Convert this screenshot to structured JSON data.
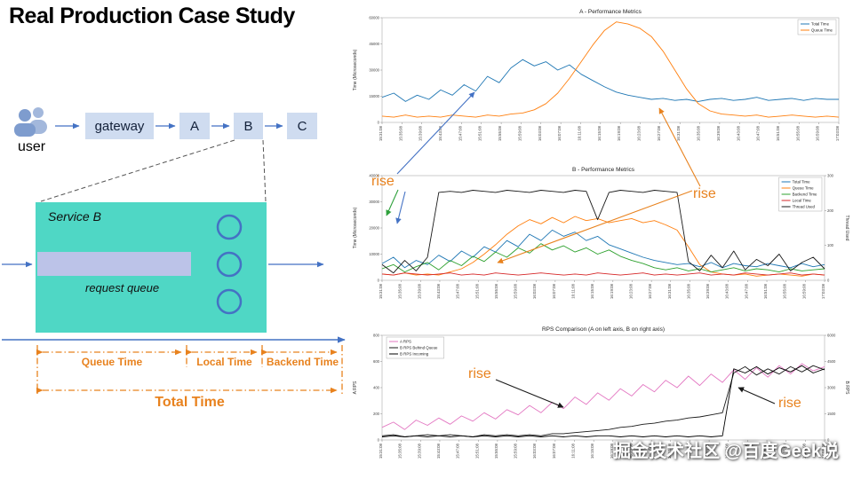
{
  "title": "Real Production Case Study",
  "diagram": {
    "user_label": "user",
    "flow_nodes": [
      "gateway",
      "A",
      "B",
      "C"
    ],
    "service_box": {
      "title": "Service B",
      "queue_label": "request queue"
    },
    "timeline": {
      "segments": [
        "Queue Time",
        "Local Time",
        "Backend Time"
      ],
      "total_label": "Total Time"
    }
  },
  "annotations": {
    "rise": "rise"
  },
  "watermark": "掘金技术社区 @百度Geek说",
  "colors": {
    "accent_blue": "#4472c4",
    "annotation_orange": "#e8821e",
    "annotation_green": "#2fa13c",
    "annotation_black": "#1a1a1a",
    "service_box_fill": "#4fd7c5",
    "queue_bar_fill": "#bcc3e8",
    "flow_box_fill": "#cfdcf0"
  },
  "chart_data": [
    {
      "type": "line",
      "title": "A - Performance Metrics",
      "ylabel": "Time (Microseconds)",
      "ylabel_right": null,
      "legend_position": "top-right",
      "ylim": [
        0,
        100
      ],
      "y_ticks": [
        "0",
        "15000",
        "30000",
        "45000",
        "60000"
      ],
      "y_ticks_right": null,
      "x_ticks": [
        "15:31:08",
        "15:35:08",
        "15:39:08",
        "15:43:08",
        "15:47:08",
        "15:51:08",
        "15:55:08",
        "15:59:08",
        "16:03:08",
        "16:07:08",
        "16:11:08",
        "16:15:08",
        "16:19:08",
        "16:23:08",
        "16:27:08",
        "16:31:08",
        "16:35:08",
        "16:39:08",
        "16:43:08",
        "16:47:08",
        "16:51:08",
        "16:55:08",
        "16:59:08",
        "17:03:08"
      ],
      "series": [
        {
          "name": "Total Time",
          "color": "#1f77b4",
          "values": [
            24,
            28,
            20,
            26,
            22,
            31,
            26,
            36,
            30,
            44,
            38,
            52,
            60,
            54,
            58,
            50,
            55,
            46,
            40,
            34,
            29,
            26,
            24,
            22,
            23,
            21,
            22,
            20,
            22,
            23,
            21,
            22,
            24,
            21,
            22,
            23,
            21,
            23,
            22,
            22
          ]
        },
        {
          "name": "Queue Time",
          "color": "#ff7f0e",
          "values": [
            6,
            5,
            7,
            5,
            6,
            5,
            7,
            6,
            5,
            7,
            6,
            8,
            9,
            12,
            18,
            28,
            42,
            58,
            74,
            88,
            96,
            94,
            90,
            82,
            68,
            50,
            32,
            18,
            11,
            8,
            7,
            6,
            7,
            5,
            6,
            7,
            6,
            5,
            6,
            5
          ]
        }
      ]
    },
    {
      "type": "line",
      "title": "B - Performance Metrics",
      "ylabel": "Time (Microseconds)",
      "ylabel_right": "Thread Used",
      "legend_position": "top-right",
      "ylim": [
        0,
        100
      ],
      "y_ticks": [
        "0",
        "10000",
        "20000",
        "30000",
        "40000"
      ],
      "y_ticks_right": [
        "0",
        "100",
        "200",
        "300"
      ],
      "x_ticks": [
        "15:31:08",
        "15:35:08",
        "15:39:08",
        "15:43:08",
        "15:47:08",
        "15:51:08",
        "15:55:08",
        "15:59:08",
        "16:03:08",
        "16:07:08",
        "16:11:08",
        "16:15:08",
        "16:19:08",
        "16:23:08",
        "16:27:08",
        "16:31:08",
        "16:35:08",
        "16:39:08",
        "16:43:08",
        "16:47:08",
        "16:51:08",
        "16:55:08",
        "16:59:08",
        "17:03:08"
      ],
      "series": [
        {
          "name": "Total Time",
          "color": "#1f77b4",
          "values": [
            16,
            22,
            12,
            19,
            15,
            24,
            18,
            28,
            22,
            32,
            27,
            38,
            32,
            44,
            38,
            48,
            42,
            46,
            38,
            42,
            34,
            30,
            26,
            22,
            19,
            17,
            15,
            16,
            13,
            17,
            12,
            16,
            14,
            13,
            16,
            14,
            12,
            16,
            13,
            15
          ]
        },
        {
          "name": "Queue Time",
          "color": "#ff7f0e",
          "values": [
            6,
            5,
            7,
            5,
            6,
            5,
            8,
            11,
            17,
            25,
            34,
            44,
            52,
            58,
            54,
            60,
            55,
            61,
            57,
            59,
            55,
            57,
            59,
            55,
            57,
            53,
            48,
            32,
            15,
            8,
            6,
            5,
            6,
            4,
            5,
            6,
            5,
            4,
            6,
            5
          ]
        },
        {
          "name": "Backend Time",
          "color": "#2ca02c",
          "values": [
            11,
            15,
            8,
            13,
            17,
            10,
            19,
            14,
            23,
            18,
            27,
            22,
            31,
            26,
            35,
            29,
            33,
            27,
            31,
            25,
            29,
            23,
            19,
            16,
            12,
            10,
            12,
            9,
            11,
            8,
            10,
            12,
            9,
            11,
            10,
            8,
            11,
            9,
            10,
            11
          ]
        },
        {
          "name": "Local Time",
          "color": "#d62728",
          "values": [
            6,
            5,
            7,
            6,
            5,
            6,
            7,
            5,
            6,
            5,
            7,
            6,
            5,
            6,
            7,
            6,
            5,
            6,
            5,
            7,
            6,
            5,
            6,
            7,
            5,
            6,
            5,
            6,
            7,
            5,
            6,
            5,
            7,
            6,
            5,
            6,
            7,
            5,
            6,
            5
          ]
        },
        {
          "name": "Thread Used",
          "color": "#1a1a1a",
          "values": [
            15,
            7,
            19,
            9,
            22,
            84,
            85,
            84,
            86,
            85,
            84,
            86,
            85,
            84,
            86,
            85,
            84,
            86,
            85,
            58,
            84,
            86,
            85,
            84,
            86,
            85,
            84,
            18,
            9,
            24,
            12,
            28,
            10,
            20,
            14,
            25,
            9,
            17,
            22,
            11
          ]
        }
      ]
    },
    {
      "type": "line",
      "title": "RPS Comparison (A on left axis, B on right axis)",
      "ylabel": "A RPS",
      "ylabel_right": "B RPS",
      "legend_position": "top-left",
      "ylim": [
        0,
        100
      ],
      "y_ticks": [
        "0",
        "200",
        "400",
        "600",
        "800"
      ],
      "y_ticks_right": [
        "0",
        "1500",
        "3000",
        "4500",
        "6000"
      ],
      "x_ticks": [
        "15:31:08",
        "15:35:08",
        "15:39:08",
        "15:43:08",
        "15:47:08",
        "15:51:08",
        "15:55:08",
        "15:59:08",
        "16:03:08",
        "16:07:08",
        "16:11:08",
        "16:15:08",
        "16:19:08",
        "16:23:08",
        "16:27:08",
        "16:31:08",
        "16:35:08",
        "16:39:08",
        "16:43:08",
        "16:47:08",
        "16:51:08",
        "16:55:08",
        "16:59:08",
        "17:03:08"
      ],
      "series": [
        {
          "name": "A RPS",
          "color": "#e377c2",
          "values": [
            12,
            17,
            10,
            19,
            14,
            21,
            15,
            23,
            18,
            26,
            20,
            29,
            24,
            33,
            26,
            36,
            30,
            41,
            34,
            45,
            38,
            49,
            42,
            53,
            46,
            57,
            50,
            61,
            52,
            63,
            55,
            67,
            58,
            69,
            60,
            71,
            63,
            73,
            66,
            70
          ]
        },
        {
          "name": "B RPS Behind Queue",
          "color": "#1a1a1a",
          "values": [
            4,
            5,
            3,
            4,
            5,
            4,
            5,
            4,
            3,
            5,
            4,
            5,
            4,
            5,
            4,
            6,
            6,
            7,
            8,
            9,
            10,
            12,
            13,
            15,
            16,
            18,
            19,
            21,
            22,
            24,
            26,
            64,
            70,
            62,
            68,
            63,
            70,
            65,
            71,
            67
          ]
        },
        {
          "name": "B RPS Incoming",
          "color": "#000000",
          "values": [
            3,
            4,
            3,
            4,
            3,
            4,
            3,
            4,
            3,
            4,
            3,
            4,
            3,
            4,
            3,
            4,
            3,
            4,
            3,
            4,
            4,
            3,
            4,
            3,
            4,
            3,
            4,
            3,
            4,
            3,
            4,
            68,
            64,
            70,
            63,
            69,
            65,
            71,
            64,
            68
          ]
        }
      ]
    }
  ]
}
